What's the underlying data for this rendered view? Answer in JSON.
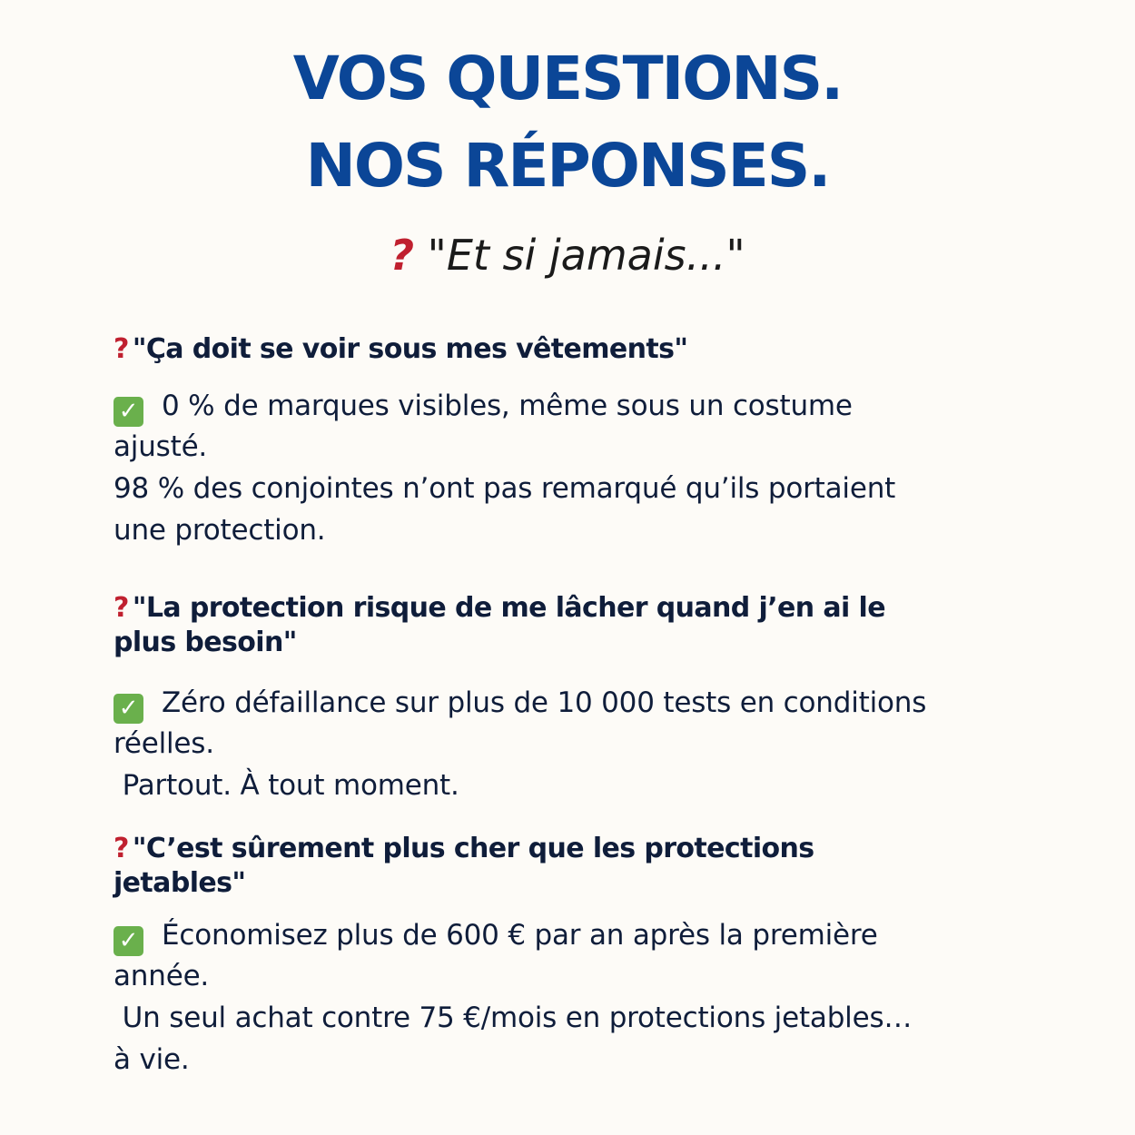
{
  "title": [
    "VOS QUESTIONS.",
    "NOS RÉPONSES."
  ],
  "subtitle": {
    "icon": "red-question-mark",
    "text": "\"Et si jamais...\""
  },
  "colors": {
    "title": "#0b4697",
    "text": "#0f1d3a",
    "question_mark": "#c0202f",
    "check": "#6ab04c",
    "background": "#fdfbf7"
  },
  "faq": [
    {
      "question_lines": [
        "\"Ça doit se voir sous mes vêtements\""
      ],
      "answer_lines": [
        "0 % de marques visibles, même sous un costume",
        "ajusté.",
        "98 % des conjointes n’ont pas remarqué qu’ils portaient",
        "une protection."
      ]
    },
    {
      "question_lines": [
        "\"La protection risque de me lâcher quand j’en ai le",
        "plus besoin\""
      ],
      "answer_lines": [
        "Zéro défaillance sur plus de 10 000 tests en conditions",
        "réelles.",
        " Partout. À tout moment."
      ]
    },
    {
      "question_lines": [
        "\"C’est sûrement plus cher que les protections",
        "jetables\""
      ],
      "answer_lines": [
        "Économisez plus de 600 € par an après la première",
        "année.",
        " Un seul achat contre 75 €/mois en protections jetables…",
        "à vie."
      ]
    }
  ]
}
